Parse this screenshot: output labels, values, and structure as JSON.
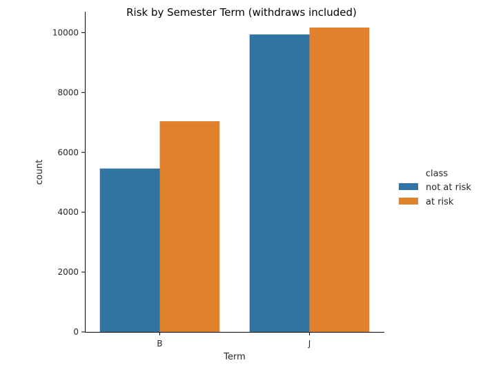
{
  "chart_data": {
    "type": "bar",
    "title": "Risk by Semester Term (withdraws included)",
    "xlabel": "Term",
    "ylabel": "count",
    "categories": [
      "B",
      "J"
    ],
    "series": [
      {
        "name": "not at risk",
        "values": [
          5460,
          9940
        ],
        "color": "#3274a1"
      },
      {
        "name": "at risk",
        "values": [
          7040,
          10170
        ],
        "color": "#e1812c"
      }
    ],
    "ylim": [
      0,
      10700
    ],
    "yticks": [
      0,
      2000,
      4000,
      6000,
      8000,
      10000
    ],
    "grid": false,
    "legend": {
      "title": "class",
      "placement": "right"
    }
  }
}
